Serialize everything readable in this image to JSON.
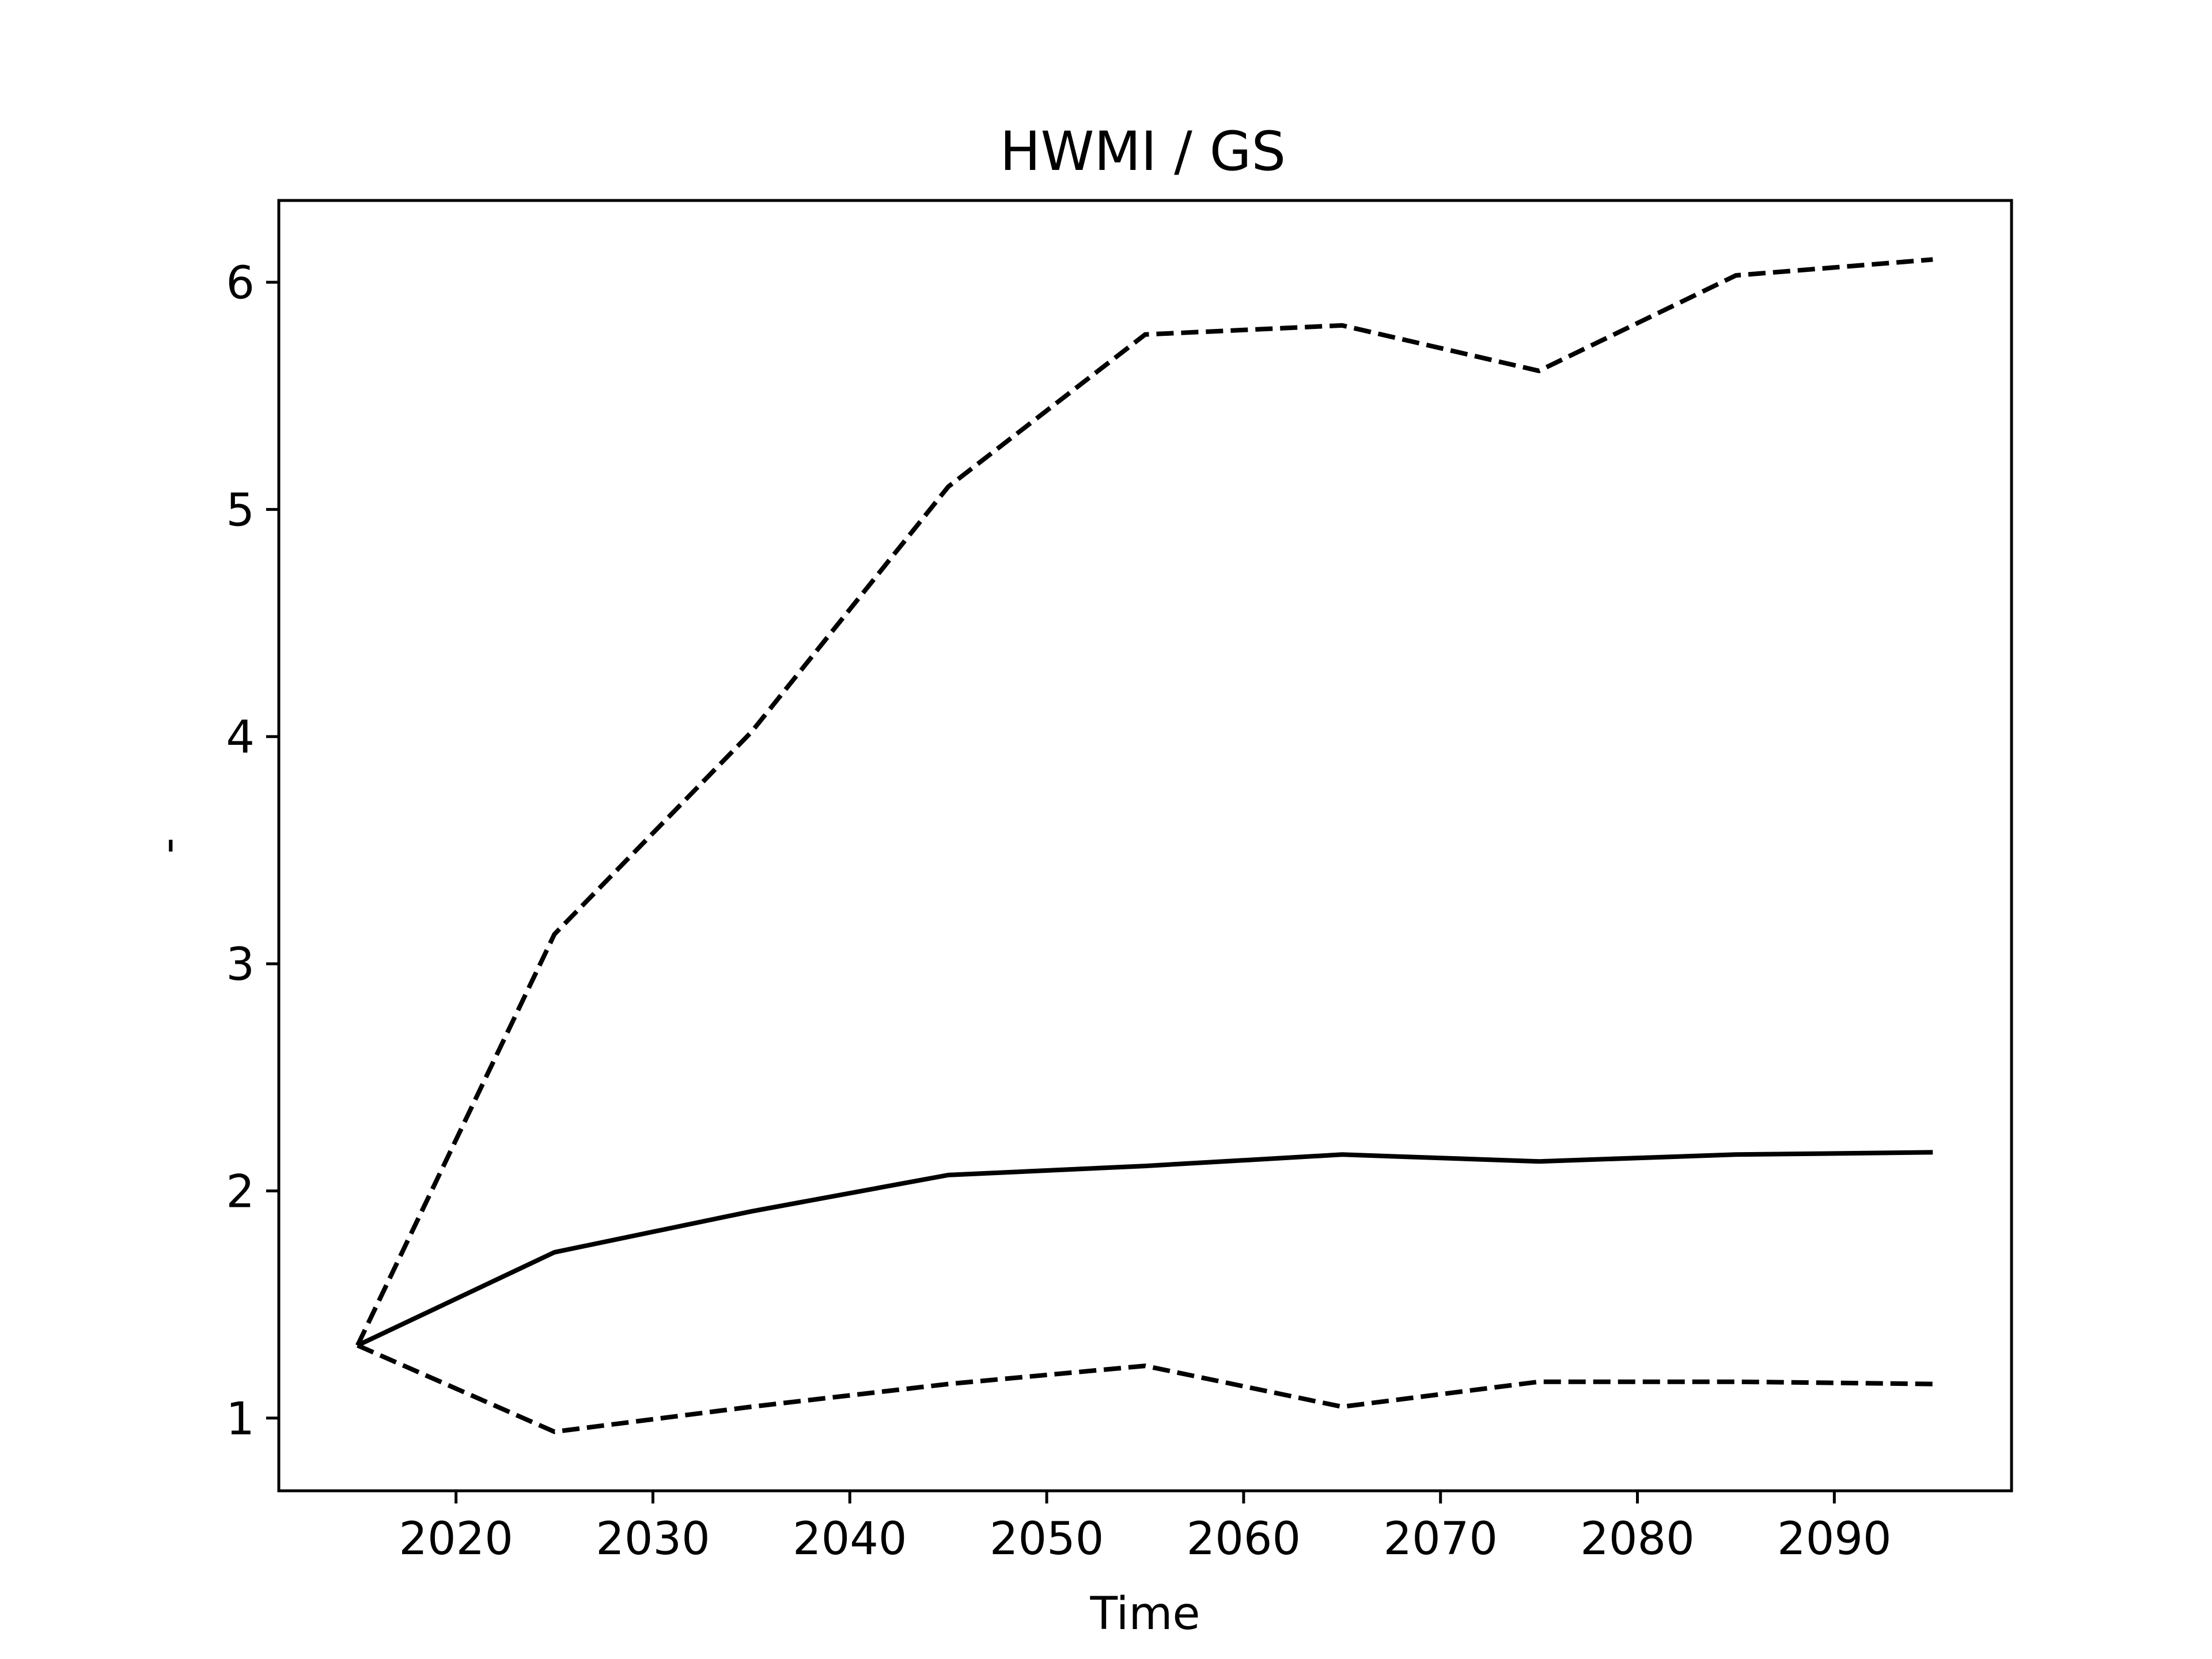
{
  "chart_data": {
    "type": "line",
    "title": "HWMI / GS",
    "xlabel": "Time",
    "ylabel": "-",
    "xlim": [
      2011,
      2099
    ],
    "ylim": [
      0.68,
      6.36
    ],
    "xticks": [
      2020,
      2030,
      2040,
      2050,
      2060,
      2070,
      2080,
      2090
    ],
    "yticks": [
      1,
      2,
      3,
      4,
      5,
      6
    ],
    "grid": false,
    "legend": "none",
    "x": [
      2015,
      2025,
      2035,
      2045,
      2055,
      2065,
      2075,
      2085,
      2095
    ],
    "series": [
      {
        "style": "dashed",
        "color": "#000000",
        "values": [
          1.32,
          3.13,
          4.02,
          5.1,
          5.77,
          5.81,
          5.61,
          6.03,
          6.1
        ]
      },
      {
        "style": "solid",
        "color": "#000000",
        "values": [
          1.32,
          1.73,
          1.91,
          2.07,
          2.11,
          2.16,
          2.13,
          2.16,
          2.17
        ]
      },
      {
        "style": "dashed",
        "color": "#000000",
        "values": [
          1.32,
          0.94,
          1.05,
          1.15,
          1.23,
          1.05,
          1.16,
          1.16,
          1.15
        ]
      }
    ]
  }
}
